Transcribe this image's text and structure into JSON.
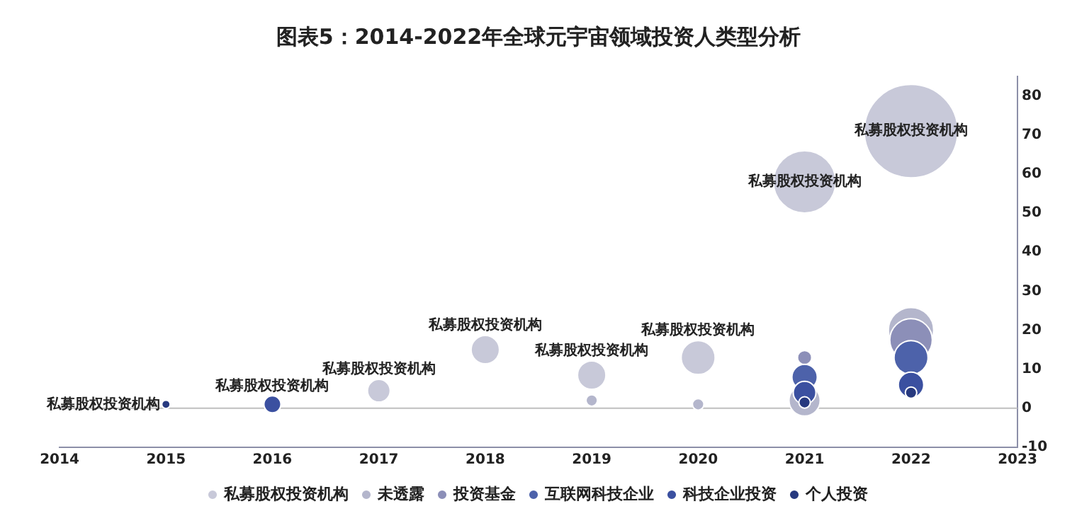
{
  "chart_data": {
    "type": "bubble",
    "title": "图表5：2014-2022年全球元宇宙领域投资人类型分析",
    "series": [
      {
        "name": "私募股权投资机构",
        "color": "#c8c9d9",
        "x": [
          2017,
          2018,
          2019,
          2020,
          2021,
          2022
        ],
        "values": [
          4.5,
          15,
          8.5,
          13,
          58,
          71
        ],
        "sizes": [
          0.059,
          0.092,
          0.092,
          0.132,
          0.444,
          1
        ]
      },
      {
        "name": "未透露",
        "color": "#b4b6cc",
        "x": [
          2019,
          2020,
          2021,
          2022
        ],
        "values": [
          2,
          1,
          2,
          20
        ],
        "sizes": [
          0.015,
          0.015,
          0.111,
          0.235
        ]
      },
      {
        "name": "投资基金",
        "color": "#8c8fb8",
        "x": [
          2021,
          2022
        ],
        "values": [
          13,
          17.5
        ],
        "sizes": [
          0.023,
          0.207
        ]
      },
      {
        "name": "互联网科技企业",
        "color": "#4d62aa",
        "x": [
          2021,
          2022
        ],
        "values": [
          8,
          13
        ],
        "sizes": [
          0.074,
          0.132
        ]
      },
      {
        "name": "科技企业投资",
        "color": "#3b50a0",
        "x": [
          2016,
          2021,
          2022
        ],
        "values": [
          1,
          4,
          6
        ],
        "sizes": [
          0.033,
          0.059,
          0.074
        ]
      },
      {
        "name": "个人投资",
        "color": "#27397f",
        "x": [
          2015,
          2021,
          2022
        ],
        "values": [
          1,
          1.5,
          4
        ],
        "sizes": [
          0.008,
          0.015,
          0.015
        ]
      }
    ],
    "annotations": [
      {
        "text": "私募股权投资机构",
        "x": 2015,
        "y": 1
      },
      {
        "text": "私募股权投资机构",
        "x": 2016,
        "y": 1
      },
      {
        "text": "私募股权投资机构",
        "x": 2017,
        "y": 4.5
      },
      {
        "text": "私募股权投资机构",
        "x": 2018,
        "y": 15
      },
      {
        "text": "私募股权投资机构",
        "x": 2019,
        "y": 8.5
      },
      {
        "text": "私募股权投资机构",
        "x": 2020,
        "y": 13
      },
      {
        "text": "私募股权投资机构",
        "x": 2021,
        "y": 58
      },
      {
        "text": "私募股权投资机构",
        "x": 2022,
        "y": 71
      }
    ],
    "xlim": [
      2014,
      2023
    ],
    "xticks": [
      2014,
      2015,
      2016,
      2017,
      2018,
      2019,
      2020,
      2021,
      2022,
      2023
    ],
    "ylim": [
      -10,
      85
    ],
    "yticks": [
      -10,
      0,
      10,
      20,
      30,
      40,
      50,
      60,
      70,
      80
    ],
    "ref_lines": [
      {
        "axis": "y",
        "value": 0,
        "color": "#bfbfbf"
      }
    ],
    "legend": "bottom",
    "grid": false
  }
}
